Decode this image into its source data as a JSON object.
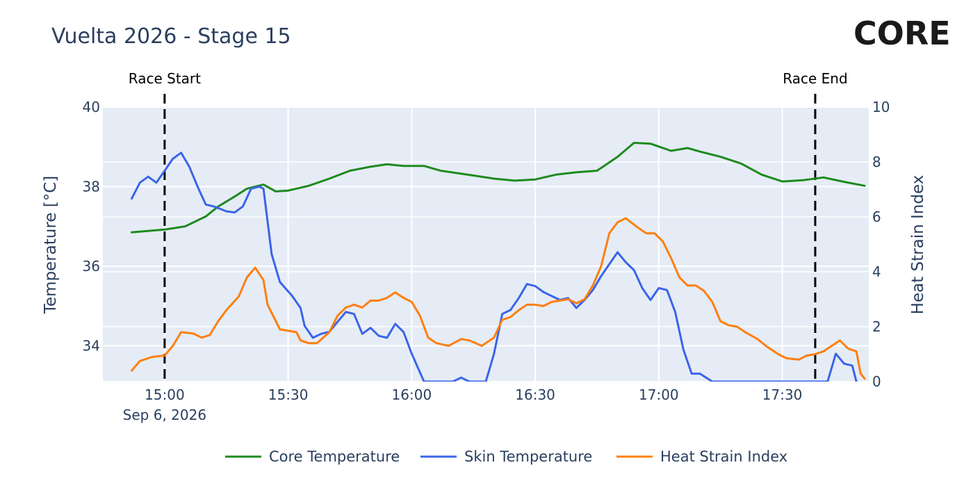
{
  "logo": {
    "text": "CORE",
    "ring_color": "#5bbf7a",
    "text_color": "#1a1a1a"
  },
  "chart_data": {
    "type": "line",
    "title": "Vuelta 2026 - Stage 15",
    "x_type": "datetime",
    "x_range": [
      "2026-09-06 14:45",
      "2026-09-06 17:51"
    ],
    "x_ticks": [
      "15:00",
      "15:30",
      "16:00",
      "16:30",
      "17:00",
      "17:30"
    ],
    "x_date_label": "Sep 6, 2026",
    "y_left": {
      "label": "Temperature [°C]",
      "range": [
        33.1,
        40
      ],
      "ticks": [
        "34",
        "36",
        "38",
        "40"
      ]
    },
    "y_right": {
      "label": "Heat Strain Index",
      "range": [
        0,
        10
      ],
      "ticks": [
        "0",
        "2",
        "4",
        "6",
        "8",
        "10"
      ]
    },
    "grid": true,
    "legend_position": "bottom-center",
    "markers": [
      {
        "label": "Race Start",
        "x": "2026-09-06 15:00"
      },
      {
        "label": "Race End",
        "x": "2026-09-06 17:38"
      }
    ],
    "series": [
      {
        "name": "Core Temperature",
        "axis": "left",
        "color": "#1e8a1e",
        "points": [
          [
            "14:52",
            36.85
          ],
          [
            "15:00",
            36.92
          ],
          [
            "15:05",
            37.0
          ],
          [
            "15:10",
            37.25
          ],
          [
            "15:13",
            37.5
          ],
          [
            "15:17",
            37.75
          ],
          [
            "15:20",
            37.95
          ],
          [
            "15:24",
            38.05
          ],
          [
            "15:27",
            37.88
          ],
          [
            "15:30",
            37.9
          ],
          [
            "15:35",
            38.02
          ],
          [
            "15:40",
            38.2
          ],
          [
            "15:45",
            38.4
          ],
          [
            "15:50",
            38.5
          ],
          [
            "15:54",
            38.56
          ],
          [
            "15:58",
            38.52
          ],
          [
            "16:03",
            38.52
          ],
          [
            "16:07",
            38.4
          ],
          [
            "16:15",
            38.28
          ],
          [
            "16:20",
            38.2
          ],
          [
            "16:25",
            38.15
          ],
          [
            "16:30",
            38.18
          ],
          [
            "16:35",
            38.3
          ],
          [
            "16:40",
            38.36
          ],
          [
            "16:45",
            38.4
          ],
          [
            "16:50",
            38.75
          ],
          [
            "16:54",
            39.1
          ],
          [
            "16:58",
            39.08
          ],
          [
            "17:03",
            38.9
          ],
          [
            "17:07",
            38.97
          ],
          [
            "17:10",
            38.88
          ],
          [
            "17:15",
            38.75
          ],
          [
            "17:20",
            38.58
          ],
          [
            "17:25",
            38.3
          ],
          [
            "17:30",
            38.13
          ],
          [
            "17:35",
            38.16
          ],
          [
            "17:40",
            38.23
          ],
          [
            "17:45",
            38.12
          ],
          [
            "17:50",
            38.02
          ]
        ]
      },
      {
        "name": "Skin Temperature",
        "axis": "left",
        "color": "#3b64e8",
        "points": [
          [
            "14:52",
            37.7
          ],
          [
            "14:54",
            38.1
          ],
          [
            "14:56",
            38.25
          ],
          [
            "14:58",
            38.1
          ],
          [
            "15:00",
            38.4
          ],
          [
            "15:02",
            38.7
          ],
          [
            "15:04",
            38.85
          ],
          [
            "15:06",
            38.5
          ],
          [
            "15:08",
            38.0
          ],
          [
            "15:10",
            37.55
          ],
          [
            "15:12",
            37.5
          ],
          [
            "15:15",
            37.38
          ],
          [
            "15:17",
            37.35
          ],
          [
            "15:19",
            37.5
          ],
          [
            "15:21",
            37.95
          ],
          [
            "15:23",
            38.0
          ],
          [
            "15:24",
            37.95
          ],
          [
            "15:26",
            36.3
          ],
          [
            "15:28",
            35.6
          ],
          [
            "15:31",
            35.25
          ],
          [
            "15:33",
            34.95
          ],
          [
            "15:34",
            34.5
          ],
          [
            "15:36",
            34.2
          ],
          [
            "15:38",
            34.3
          ],
          [
            "15:40",
            34.35
          ],
          [
            "15:42",
            34.6
          ],
          [
            "15:44",
            34.85
          ],
          [
            "15:46",
            34.8
          ],
          [
            "15:48",
            34.3
          ],
          [
            "15:50",
            34.45
          ],
          [
            "15:52",
            34.25
          ],
          [
            "15:54",
            34.2
          ],
          [
            "15:56",
            34.55
          ],
          [
            "15:58",
            34.35
          ],
          [
            "16:00",
            33.8
          ],
          [
            "16:03",
            33.1
          ],
          [
            "16:08",
            33.1
          ],
          [
            "16:10",
            33.1
          ],
          [
            "16:12",
            33.2
          ],
          [
            "16:14",
            33.1
          ],
          [
            "16:18",
            33.1
          ],
          [
            "16:20",
            33.8
          ],
          [
            "16:22",
            34.8
          ],
          [
            "16:24",
            34.9
          ],
          [
            "16:26",
            35.2
          ],
          [
            "16:28",
            35.55
          ],
          [
            "16:30",
            35.5
          ],
          [
            "16:32",
            35.35
          ],
          [
            "16:34",
            35.25
          ],
          [
            "16:36",
            35.15
          ],
          [
            "16:38",
            35.2
          ],
          [
            "16:40",
            34.95
          ],
          [
            "16:42",
            35.15
          ],
          [
            "16:44",
            35.4
          ],
          [
            "16:46",
            35.75
          ],
          [
            "16:48",
            36.05
          ],
          [
            "16:50",
            36.35
          ],
          [
            "16:52",
            36.1
          ],
          [
            "16:54",
            35.9
          ],
          [
            "16:56",
            35.45
          ],
          [
            "16:58",
            35.15
          ],
          [
            "17:00",
            35.45
          ],
          [
            "17:02",
            35.4
          ],
          [
            "17:04",
            34.85
          ],
          [
            "17:06",
            33.9
          ],
          [
            "17:08",
            33.3
          ],
          [
            "17:10",
            33.3
          ],
          [
            "17:13",
            33.1
          ],
          [
            "17:41",
            33.1
          ],
          [
            "17:43",
            33.8
          ],
          [
            "17:45",
            33.55
          ],
          [
            "17:47",
            33.5
          ],
          [
            "17:48",
            33.1
          ]
        ]
      },
      {
        "name": "Heat Strain Index",
        "axis": "right",
        "color": "#ff7f0e",
        "points": [
          [
            "14:52",
            0.4
          ],
          [
            "14:54",
            0.75
          ],
          [
            "14:57",
            0.9
          ],
          [
            "15:00",
            0.95
          ],
          [
            "15:02",
            1.3
          ],
          [
            "15:04",
            1.8
          ],
          [
            "15:07",
            1.75
          ],
          [
            "15:09",
            1.6
          ],
          [
            "15:11",
            1.7
          ],
          [
            "15:13",
            2.2
          ],
          [
            "15:15",
            2.6
          ],
          [
            "15:18",
            3.1
          ],
          [
            "15:20",
            3.8
          ],
          [
            "15:22",
            4.15
          ],
          [
            "15:24",
            3.7
          ],
          [
            "15:25",
            2.8
          ],
          [
            "15:28",
            1.9
          ],
          [
            "15:30",
            1.85
          ],
          [
            "15:32",
            1.8
          ],
          [
            "15:33",
            1.5
          ],
          [
            "15:35",
            1.4
          ],
          [
            "15:37",
            1.4
          ],
          [
            "15:40",
            1.8
          ],
          [
            "15:42",
            2.4
          ],
          [
            "15:44",
            2.7
          ],
          [
            "15:46",
            2.8
          ],
          [
            "15:48",
            2.7
          ],
          [
            "15:50",
            2.95
          ],
          [
            "15:52",
            2.95
          ],
          [
            "15:54",
            3.05
          ],
          [
            "15:56",
            3.25
          ],
          [
            "15:58",
            3.05
          ],
          [
            "16:00",
            2.9
          ],
          [
            "16:02",
            2.4
          ],
          [
            "16:04",
            1.6
          ],
          [
            "16:06",
            1.4
          ],
          [
            "16:09",
            1.3
          ],
          [
            "16:12",
            1.55
          ],
          [
            "16:14",
            1.5
          ],
          [
            "16:17",
            1.3
          ],
          [
            "16:20",
            1.6
          ],
          [
            "16:22",
            2.25
          ],
          [
            "16:24",
            2.35
          ],
          [
            "16:26",
            2.6
          ],
          [
            "16:28",
            2.8
          ],
          [
            "16:30",
            2.8
          ],
          [
            "16:32",
            2.75
          ],
          [
            "16:34",
            2.9
          ],
          [
            "16:36",
            2.95
          ],
          [
            "16:38",
            3.0
          ],
          [
            "16:40",
            2.85
          ],
          [
            "16:42",
            3.0
          ],
          [
            "16:44",
            3.5
          ],
          [
            "16:46",
            4.2
          ],
          [
            "16:48",
            5.4
          ],
          [
            "16:50",
            5.8
          ],
          [
            "16:52",
            5.95
          ],
          [
            "16:55",
            5.6
          ],
          [
            "16:57",
            5.4
          ],
          [
            "16:59",
            5.4
          ],
          [
            "17:01",
            5.1
          ],
          [
            "17:03",
            4.5
          ],
          [
            "17:05",
            3.8
          ],
          [
            "17:07",
            3.5
          ],
          [
            "17:09",
            3.5
          ],
          [
            "17:11",
            3.3
          ],
          [
            "17:13",
            2.9
          ],
          [
            "17:15",
            2.2
          ],
          [
            "17:17",
            2.05
          ],
          [
            "17:19",
            2.0
          ],
          [
            "17:21",
            1.8
          ],
          [
            "17:24",
            1.55
          ],
          [
            "17:26",
            1.3
          ],
          [
            "17:29",
            1.0
          ],
          [
            "17:31",
            0.85
          ],
          [
            "17:34",
            0.8
          ],
          [
            "17:36",
            0.95
          ],
          [
            "17:38",
            1.0
          ],
          [
            "17:40",
            1.1
          ],
          [
            "17:42",
            1.3
          ],
          [
            "17:44",
            1.5
          ],
          [
            "17:46",
            1.2
          ],
          [
            "17:48",
            1.1
          ],
          [
            "17:49",
            0.3
          ],
          [
            "17:50",
            0.1
          ]
        ]
      }
    ]
  }
}
